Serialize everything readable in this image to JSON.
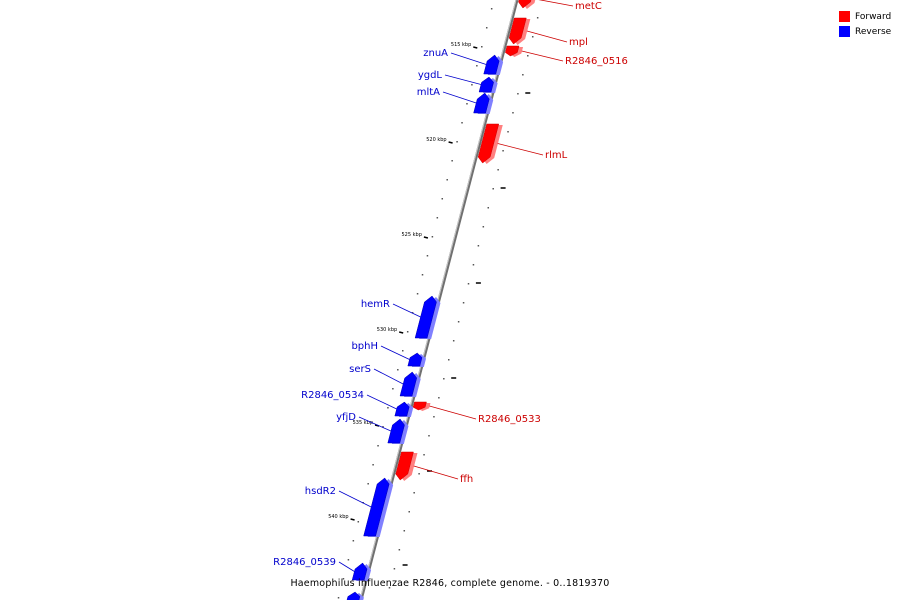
{
  "legend": {
    "forward": {
      "label": "Forward",
      "color": "#ff0000"
    },
    "reverse": {
      "label": "Reverse",
      "color": "#0000ff"
    }
  },
  "caption": "Haemophilus influenzae R2846, complete genome. - 0..1819370",
  "colors": {
    "forward_label": "#cc0000",
    "reverse_label": "#0000cc",
    "backbone": "#808080"
  },
  "ticks": [
    "515 kbp",
    "520 kbp",
    "525 kbp",
    "530 kbp",
    "535 kbp",
    "540 kbp"
  ],
  "genes": [
    {
      "name": "metC",
      "strand": "forward"
    },
    {
      "name": "mpl",
      "strand": "forward"
    },
    {
      "name": "R2846_0516",
      "strand": "forward"
    },
    {
      "name": "znuA",
      "strand": "reverse"
    },
    {
      "name": "ygdL",
      "strand": "reverse"
    },
    {
      "name": "mltA",
      "strand": "reverse"
    },
    {
      "name": "rlmL",
      "strand": "forward"
    },
    {
      "name": "hemR",
      "strand": "reverse"
    },
    {
      "name": "bphH",
      "strand": "reverse"
    },
    {
      "name": "serS",
      "strand": "reverse"
    },
    {
      "name": "R2846_0534",
      "strand": "reverse"
    },
    {
      "name": "R2846_0533",
      "strand": "forward"
    },
    {
      "name": "yfjD",
      "strand": "reverse"
    },
    {
      "name": "ffh",
      "strand": "forward"
    },
    {
      "name": "hsdR2",
      "strand": "reverse"
    },
    {
      "name": "R2846_0539",
      "strand": "reverse"
    }
  ]
}
